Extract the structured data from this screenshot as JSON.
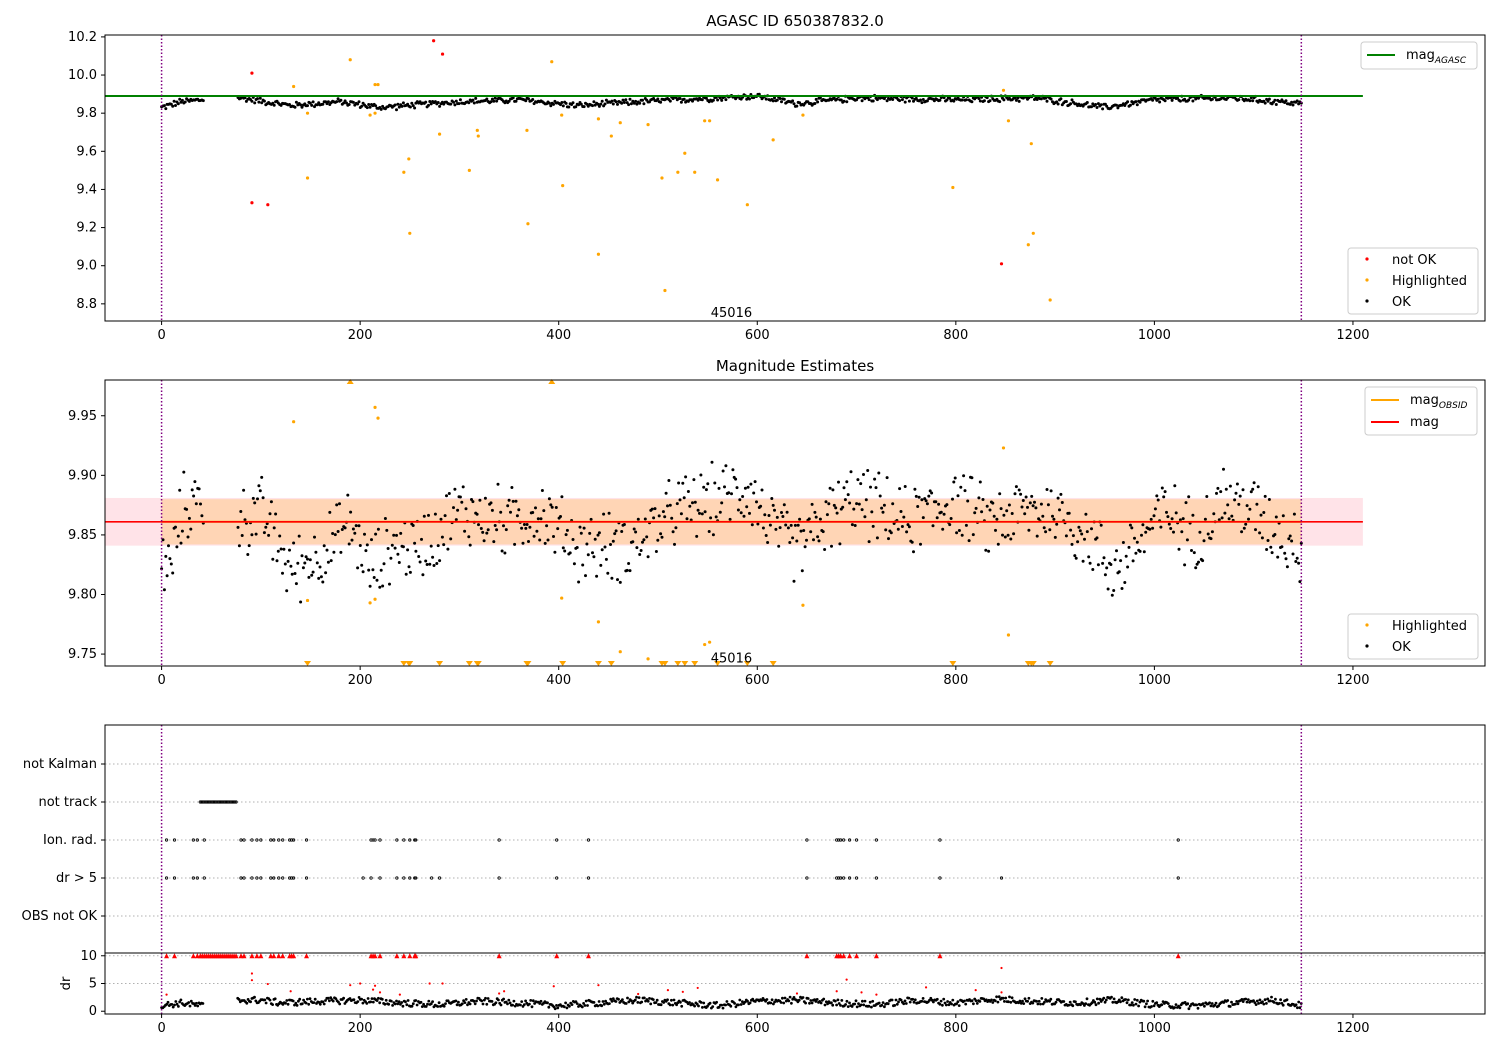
{
  "chart_data": [
    {
      "type": "scatter",
      "title": "AGASC ID 650387832.0",
      "xlim": [
        -57,
        1333
      ],
      "ylim": [
        8.71,
        10.21
      ],
      "xticks": [
        0,
        200,
        400,
        600,
        800,
        1000,
        1200
      ],
      "yticks": [
        8.8,
        9.0,
        9.2,
        9.4,
        9.6,
        9.8,
        10.0,
        10.2
      ],
      "ytick_labels": [
        "8.8",
        "9.0",
        "9.2",
        "9.4",
        "9.6",
        "9.8",
        "10.0",
        "10.2"
      ],
      "obs_boundaries": [
        0,
        1148
      ],
      "obs_label": {
        "text": "45016",
        "x": 574,
        "y": 8.73
      },
      "colors": {
        "ok": "#000000",
        "highlighted": "#ffa500",
        "not_ok": "#ff0000",
        "mag_agasc": "#008000",
        "boundary": "#800080"
      },
      "mag_agasc": {
        "value": 9.89,
        "x": [
          -57,
          1210
        ]
      },
      "ok_series": {
        "name": "OK",
        "trend": [
          [
            0,
            9.83
          ],
          [
            20,
            9.86
          ],
          [
            40,
            9.87
          ],
          [
            80,
            9.88
          ],
          [
            130,
            9.84
          ],
          [
            180,
            9.86
          ],
          [
            220,
            9.83
          ],
          [
            300,
            9.86
          ],
          [
            360,
            9.87
          ],
          [
            420,
            9.84
          ],
          [
            480,
            9.86
          ],
          [
            560,
            9.88
          ],
          [
            600,
            9.89
          ],
          [
            640,
            9.85
          ],
          [
            700,
            9.88
          ],
          [
            800,
            9.87
          ],
          [
            880,
            9.88
          ],
          [
            950,
            9.83
          ],
          [
            1000,
            9.87
          ],
          [
            1080,
            9.88
          ],
          [
            1148,
            9.85
          ]
        ],
        "gaps": [
          [
            42,
            76
          ]
        ],
        "spread": 0.02
      },
      "highlighted_series": {
        "name": "Highlighted",
        "points": [
          [
            133,
            9.94
          ],
          [
            147,
            9.46
          ],
          [
            147,
            9.8
          ],
          [
            190,
            10.08
          ],
          [
            210,
            9.79
          ],
          [
            215,
            9.95
          ],
          [
            218,
            9.95
          ],
          [
            215,
            9.8
          ],
          [
            244,
            9.49
          ],
          [
            249,
            9.56
          ],
          [
            250,
            9.17
          ],
          [
            280,
            9.69
          ],
          [
            310,
            9.5
          ],
          [
            318,
            9.71
          ],
          [
            319,
            9.68
          ],
          [
            368,
            9.71
          ],
          [
            369,
            9.22
          ],
          [
            393,
            10.07
          ],
          [
            403,
            9.79
          ],
          [
            404,
            9.42
          ],
          [
            440,
            9.77
          ],
          [
            440,
            9.06
          ],
          [
            453,
            9.68
          ],
          [
            462,
            9.75
          ],
          [
            490,
            9.74
          ],
          [
            504,
            9.46
          ],
          [
            507,
            8.87
          ],
          [
            520,
            9.49
          ],
          [
            527,
            9.59
          ],
          [
            537,
            9.49
          ],
          [
            547,
            9.76
          ],
          [
            552,
            9.76
          ],
          [
            560,
            9.45
          ],
          [
            590,
            9.32
          ],
          [
            616,
            9.66
          ],
          [
            646,
            9.79
          ],
          [
            797,
            9.41
          ],
          [
            848,
            9.92
          ],
          [
            853,
            9.76
          ],
          [
            873,
            9.11
          ],
          [
            876,
            9.64
          ],
          [
            878,
            9.17
          ],
          [
            895,
            8.82
          ]
        ]
      },
      "not_ok_series": {
        "name": "not OK",
        "points": [
          [
            91,
            10.01
          ],
          [
            91,
            9.33
          ],
          [
            107,
            9.32
          ],
          [
            274,
            10.18
          ],
          [
            283,
            10.11
          ],
          [
            846,
            9.01
          ]
        ]
      },
      "legend": {
        "upper": {
          "position": "top-right",
          "labels": [
            "mag",
            "AGASC"
          ]
        },
        "lower": {
          "position": "bottom-right",
          "labels": [
            "not OK",
            "Highlighted",
            "OK"
          ]
        }
      }
    },
    {
      "type": "scatter",
      "title": "Magnitude Estimates",
      "xlim": [
        -57,
        1333
      ],
      "ylim": [
        9.74,
        9.98
      ],
      "xticks": [
        0,
        200,
        400,
        600,
        800,
        1000,
        1200
      ],
      "yticks": [
        9.75,
        9.8,
        9.85,
        9.9,
        9.95
      ],
      "ytick_labels": [
        "9.75",
        "9.80",
        "9.85",
        "9.90",
        "9.95"
      ],
      "obs_boundaries": [
        0,
        1148
      ],
      "obs_label": {
        "text": "45016",
        "x": 574,
        "y": 9.743
      },
      "colors": {
        "ok": "#000000",
        "highlighted": "#ffa500",
        "mag": "#ff0000",
        "mag_obsid": "#ffa500",
        "band_outer": "#ffc0cb",
        "band_inner": "#ffa500",
        "boundary": "#800080"
      },
      "mag_line": {
        "value": 9.861,
        "x": [
          -57,
          1210
        ],
        "band": [
          9.841,
          9.881
        ]
      },
      "mag_obsid_line": {
        "value": 9.861,
        "x": [
          0,
          1148
        ],
        "band": [
          9.842,
          9.88
        ]
      },
      "ok_series": {
        "name": "OK",
        "trend": [
          [
            0,
            9.83
          ],
          [
            10,
            9.82
          ],
          [
            20,
            9.87
          ],
          [
            35,
            9.88
          ],
          [
            50,
            9.87
          ],
          [
            80,
            9.86
          ],
          [
            100,
            9.87
          ],
          [
            130,
            9.82
          ],
          [
            150,
            9.83
          ],
          [
            170,
            9.84
          ],
          [
            190,
            9.86
          ],
          [
            210,
            9.82
          ],
          [
            230,
            9.84
          ],
          [
            260,
            9.84
          ],
          [
            300,
            9.87
          ],
          [
            350,
            9.86
          ],
          [
            380,
            9.87
          ],
          [
            420,
            9.84
          ],
          [
            470,
            9.84
          ],
          [
            520,
            9.87
          ],
          [
            560,
            9.88
          ],
          [
            590,
            9.89
          ],
          [
            620,
            9.85
          ],
          [
            640,
            9.84
          ],
          [
            680,
            9.87
          ],
          [
            700,
            9.88
          ],
          [
            750,
            9.86
          ],
          [
            800,
            9.88
          ],
          [
            830,
            9.86
          ],
          [
            870,
            9.87
          ],
          [
            900,
            9.87
          ],
          [
            930,
            9.85
          ],
          [
            960,
            9.82
          ],
          [
            990,
            9.85
          ],
          [
            1010,
            9.87
          ],
          [
            1040,
            9.85
          ],
          [
            1070,
            9.88
          ],
          [
            1100,
            9.87
          ],
          [
            1148,
            9.84
          ]
        ],
        "gaps": [
          [
            42,
            76
          ]
        ],
        "spread": 0.035
      },
      "highlighted_series": {
        "name": "Highlighted",
        "points": [
          [
            133,
            9.945
          ],
          [
            147,
            9.795
          ],
          [
            215,
            9.957
          ],
          [
            218,
            9.948
          ],
          [
            210,
            9.793
          ],
          [
            215,
            9.796
          ],
          [
            403,
            9.797
          ],
          [
            440,
            9.777
          ],
          [
            462,
            9.752
          ],
          [
            490,
            9.746
          ],
          [
            547,
            9.758
          ],
          [
            552,
            9.76
          ],
          [
            646,
            9.791
          ],
          [
            848,
            9.923
          ],
          [
            853,
            9.766
          ]
        ]
      },
      "clipped_top": [
        190,
        393
      ],
      "clipped_bottom": [
        147,
        244,
        249,
        250,
        280,
        310,
        318,
        319,
        368,
        369,
        404,
        440,
        453,
        504,
        507,
        520,
        527,
        537,
        560,
        590,
        616,
        797,
        873,
        876,
        878,
        895
      ],
      "legend": {
        "upper": {
          "position": "top-right",
          "labels": [
            "mag",
            "OBSID",
            "mag"
          ]
        },
        "lower": {
          "position": "bottom-right",
          "labels": [
            "Highlighted",
            "OK"
          ]
        }
      }
    },
    {
      "type": "scatter",
      "title": "",
      "xlim": [
        -57,
        1333
      ],
      "categories": [
        "not Kalman",
        "not track",
        "Ion. rad.",
        "dr > 5",
        "OBS not OK"
      ],
      "obs_boundaries": [
        0,
        1148
      ],
      "flags": {
        "not track": [
          [
            39,
            76
          ]
        ],
        "Ion. rad.": [
          5,
          13,
          32,
          36,
          43,
          80,
          83,
          91,
          96,
          100,
          110,
          113,
          118,
          122,
          129,
          131,
          133,
          146,
          211,
          213,
          215,
          220,
          237,
          244,
          250,
          255,
          256,
          340,
          398,
          430,
          650,
          680,
          682,
          684,
          687,
          693,
          700,
          720,
          784,
          1024
        ],
        "dr > 5": [
          5,
          13,
          32,
          36,
          43,
          80,
          83,
          91,
          96,
          100,
          110,
          113,
          118,
          122,
          129,
          131,
          133,
          146,
          203,
          211,
          220,
          237,
          244,
          250,
          255,
          256,
          272,
          280,
          340,
          398,
          430,
          650,
          680,
          682,
          684,
          687,
          693,
          700,
          720,
          784,
          846,
          1024
        ]
      }
    },
    {
      "type": "scatter",
      "title": "",
      "xlim": [
        -57,
        1333
      ],
      "ylim": [
        -0.5,
        10.5
      ],
      "ylabel": "dr",
      "yticks": [
        0,
        5,
        10
      ],
      "ytick_labels": [
        "0",
        "5",
        "10"
      ],
      "obs_boundaries": [
        0,
        1148
      ],
      "xticks": [
        0,
        200,
        400,
        600,
        800,
        1000,
        1200
      ],
      "dr_trend": [
        [
          0,
          1.0
        ],
        [
          20,
          1.5
        ],
        [
          40,
          1.0
        ],
        [
          80,
          2.0
        ],
        [
          100,
          2.0
        ],
        [
          120,
          1.5
        ],
        [
          160,
          1.8
        ],
        [
          200,
          2.0
        ],
        [
          240,
          1.5
        ],
        [
          280,
          1.2
        ],
        [
          320,
          1.8
        ],
        [
          360,
          1.5
        ],
        [
          400,
          1.0
        ],
        [
          440,
          1.5
        ],
        [
          480,
          2.0
        ],
        [
          520,
          1.5
        ],
        [
          560,
          1.0
        ],
        [
          600,
          1.8
        ],
        [
          640,
          2.0
        ],
        [
          680,
          1.5
        ],
        [
          720,
          1.2
        ],
        [
          760,
          2.0
        ],
        [
          800,
          1.5
        ],
        [
          840,
          2.2
        ],
        [
          880,
          1.8
        ],
        [
          920,
          1.5
        ],
        [
          960,
          2.0
        ],
        [
          1000,
          1.2
        ],
        [
          1040,
          1.0
        ],
        [
          1080,
          1.5
        ],
        [
          1120,
          2.0
        ],
        [
          1148,
          1.0
        ]
      ],
      "dr_gaps": [
        [
          42,
          76
        ]
      ],
      "dr_spread": 0.6,
      "red_at_10": [
        5,
        13,
        32,
        36,
        [
          39,
          76
        ],
        80,
        83,
        91,
        96,
        100,
        110,
        113,
        118,
        122,
        129,
        131,
        133,
        146,
        211,
        213,
        215,
        220,
        237,
        244,
        250,
        255,
        256,
        340,
        398,
        430,
        650,
        680,
        682,
        684,
        687,
        693,
        700,
        720,
        784,
        1024
      ],
      "red_points": [
        [
          5,
          3.0
        ],
        [
          91,
          6.8
        ],
        [
          91,
          5.6
        ],
        [
          107,
          4.9
        ],
        [
          130,
          3.6
        ],
        [
          190,
          4.7
        ],
        [
          200,
          5.0
        ],
        [
          213,
          3.9
        ],
        [
          215,
          4.6
        ],
        [
          220,
          3.4
        ],
        [
          240,
          3.0
        ],
        [
          270,
          5.0
        ],
        [
          283,
          5.0
        ],
        [
          340,
          3.2
        ],
        [
          345,
          3.6
        ],
        [
          395,
          4.5
        ],
        [
          440,
          4.7
        ],
        [
          480,
          3.1
        ],
        [
          510,
          3.8
        ],
        [
          525,
          3.5
        ],
        [
          540,
          4.2
        ],
        [
          640,
          3.2
        ],
        [
          680,
          3.6
        ],
        [
          690,
          5.7
        ],
        [
          705,
          3.4
        ],
        [
          720,
          3.0
        ],
        [
          770,
          4.3
        ],
        [
          820,
          3.8
        ],
        [
          846,
          7.8
        ],
        [
          846,
          3.4
        ]
      ]
    }
  ]
}
